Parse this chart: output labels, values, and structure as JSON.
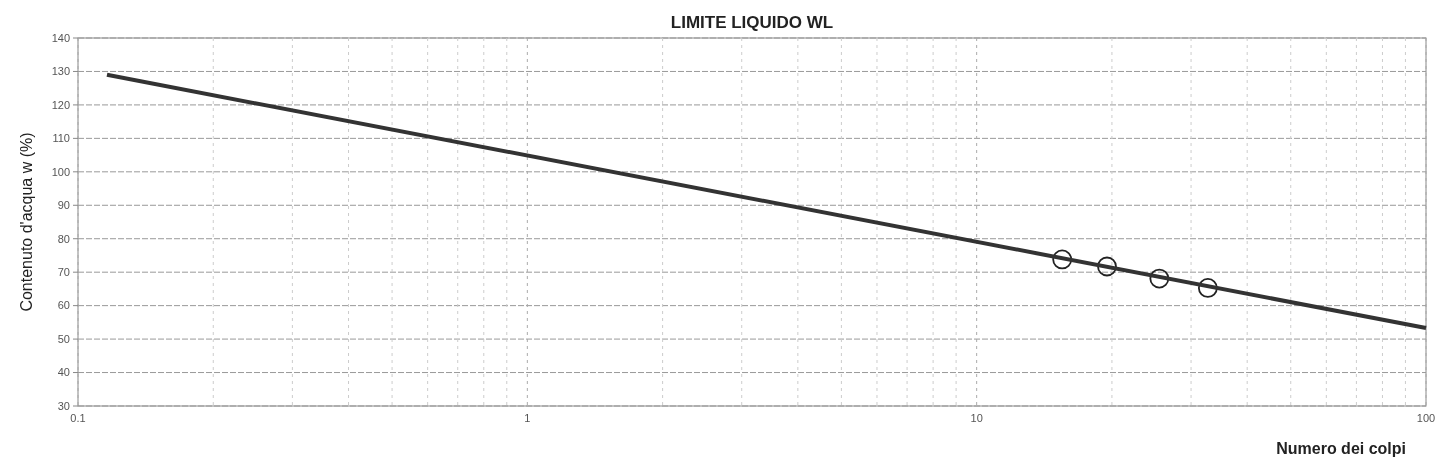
{
  "chart_data": {
    "type": "scatter",
    "title": "LIMITE LIQUIDO WL",
    "xlabel": "Numero dei colpi",
    "ylabel": "Contenuto d'acqua w (%)",
    "log": "x",
    "grid": true,
    "xlim": [
      0.1,
      100
    ],
    "ylim": [
      30,
      140
    ],
    "xticks": [
      0.1,
      {
        "value": 0.2,
        "label": null
      },
      {
        "value": 0.3,
        "label": null
      },
      {
        "value": 0.4,
        "label": null
      },
      {
        "value": 0.5,
        "label": null
      },
      {
        "value": 0.6,
        "label": null
      },
      {
        "value": 0.7,
        "label": null
      },
      {
        "value": 0.8,
        "label": null
      },
      {
        "value": 0.9,
        "label": null
      },
      1,
      {
        "value": 2,
        "label": null
      },
      {
        "value": 3,
        "label": null
      },
      {
        "value": 4,
        "label": null
      },
      {
        "value": 5,
        "label": null
      },
      {
        "value": 6,
        "label": null
      },
      {
        "value": 7,
        "label": null
      },
      {
        "value": 8,
        "label": null
      },
      {
        "value": 9,
        "label": null
      },
      10,
      {
        "value": 20,
        "label": null
      },
      {
        "value": 30,
        "label": null
      },
      {
        "value": 40,
        "label": null
      },
      {
        "value": 50,
        "label": null
      },
      {
        "value": 60,
        "label": null
      },
      {
        "value": 70,
        "label": null
      },
      {
        "value": 80,
        "label": null
      },
      {
        "value": 90,
        "label": null
      },
      100
    ],
    "yticks": [
      30,
      40,
      50,
      60,
      70,
      80,
      90,
      100,
      110,
      120,
      130,
      140
    ],
    "series": [
      {
        "color": "#222222",
        "marker": "circle",
        "x": [
          15.5,
          19.5,
          25.5,
          32.7
        ],
        "values": [
          73.8,
          71.7,
          68.1,
          65.3
        ]
      },
      {
        "type": "line",
        "color": "#333333",
        "marker": "none",
        "line_style": "solid",
        "x": [
          0.116,
          100
        ],
        "values": [
          129,
          53.3
        ]
      }
    ]
  }
}
